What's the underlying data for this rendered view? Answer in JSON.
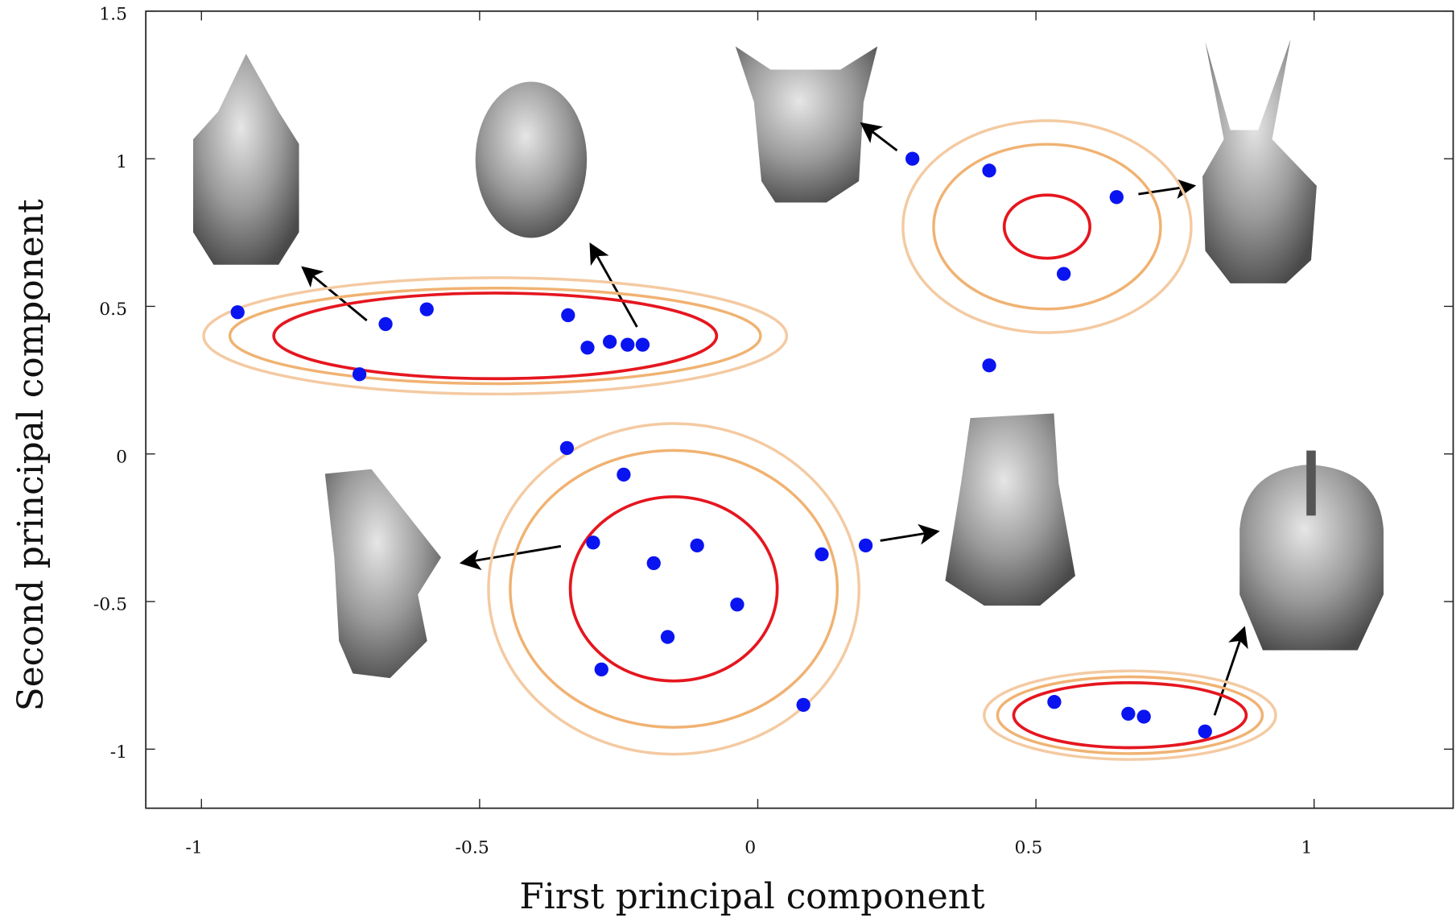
{
  "chart_data": {
    "type": "scatter",
    "x_label": "First principal component",
    "y_label": "Second principal component",
    "xlim": [
      -1.1,
      1.25
    ],
    "ylim": [
      -1.2,
      1.5
    ],
    "xticks": [
      -1,
      -0.5,
      0,
      0.5,
      1
    ],
    "yticks": [
      -1,
      -0.5,
      0,
      0.5,
      1,
      1.5
    ],
    "color": "#0a14f0",
    "x": [
      -0.935,
      -0.669,
      -0.595,
      -0.716,
      -0.341,
      -0.306,
      -0.266,
      -0.234,
      -0.207,
      0.278,
      0.416,
      0.645,
      0.55,
      0.416,
      -0.343,
      -0.241,
      -0.296,
      -0.109,
      -0.187,
      0.115,
      0.194,
      -0.037,
      -0.162,
      -0.281,
      0.082,
      0.533,
      0.666,
      0.694,
      0.804
    ],
    "values": [
      0.48,
      0.44,
      0.49,
      0.27,
      0.47,
      0.36,
      0.38,
      0.37,
      0.37,
      1.0,
      0.96,
      0.87,
      0.61,
      0.3,
      0.02,
      -0.07,
      -0.3,
      -0.31,
      -0.37,
      -0.34,
      -0.31,
      -0.51,
      -0.62,
      -0.73,
      -0.85,
      -0.84,
      -0.88,
      -0.89,
      -0.94
    ],
    "contour_colors": [
      "#e5161f",
      "#f0b272",
      "#f4caa2"
    ],
    "contours": [
      {
        "cx": -0.472,
        "cy": 0.4,
        "rx": [
          0.398,
          0.477,
          0.524
        ],
        "ry": [
          0.145,
          0.162,
          0.197
        ]
      },
      {
        "cx": 0.52,
        "cy": 0.77,
        "rx": [
          0.077,
          0.204,
          0.259
        ],
        "ry": [
          0.107,
          0.279,
          0.359
        ]
      },
      {
        "cx": -0.151,
        "cy": -0.457,
        "rx": [
          0.186,
          0.294,
          0.333
        ],
        "ry": [
          0.312,
          0.469,
          0.56
        ]
      },
      {
        "cx": 0.669,
        "cy": -0.885,
        "rx": [
          0.209,
          0.238,
          0.262
        ],
        "ry": [
          0.11,
          0.13,
          0.15
        ]
      }
    ]
  }
}
